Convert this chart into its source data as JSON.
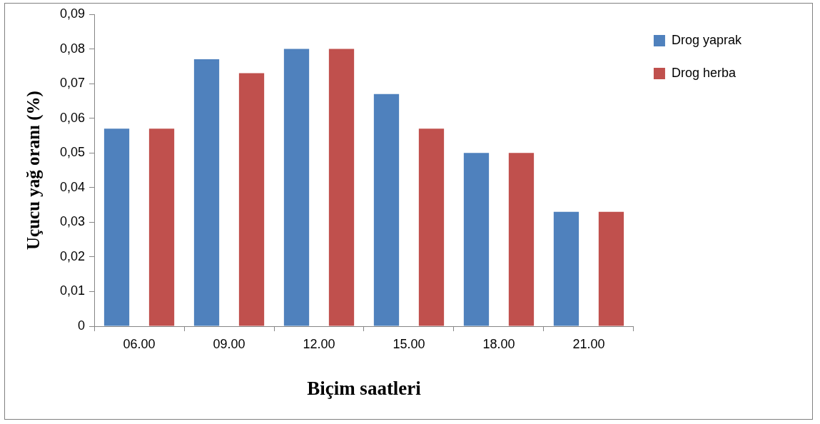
{
  "chart_data": {
    "type": "bar",
    "xlabel": "Biçim saatleri",
    "ylabel": "Uçucu yağ oranı (%)",
    "categories": [
      "06.00",
      "09.00",
      "12.00",
      "15.00",
      "18.00",
      "21.00"
    ],
    "series": [
      {
        "name": "Drog yaprak",
        "color": "#4f81bd",
        "values": [
          0.057,
          0.077,
          0.08,
          0.067,
          0.05,
          0.033
        ]
      },
      {
        "name": "Drog herba",
        "color": "#c0504d",
        "values": [
          0.057,
          0.073,
          0.08,
          0.057,
          0.05,
          0.033
        ]
      }
    ],
    "ylim": [
      0,
      0.09
    ],
    "yticks": [
      0,
      {
        "value": 0.01,
        "label": "0,01"
      },
      {
        "value": 0.02,
        "label": "0,02"
      },
      {
        "value": 0.03,
        "label": "0,03"
      },
      {
        "value": 0.04,
        "label": "0,04"
      },
      {
        "value": 0.05,
        "label": "0,05"
      },
      {
        "value": 0.06,
        "label": "0,06"
      },
      {
        "value": 0.07,
        "label": "0,07"
      },
      {
        "value": 0.08,
        "label": "0,08"
      },
      {
        "value": 0.09,
        "label": "0,09"
      }
    ],
    "grid": false,
    "legend": "right"
  }
}
